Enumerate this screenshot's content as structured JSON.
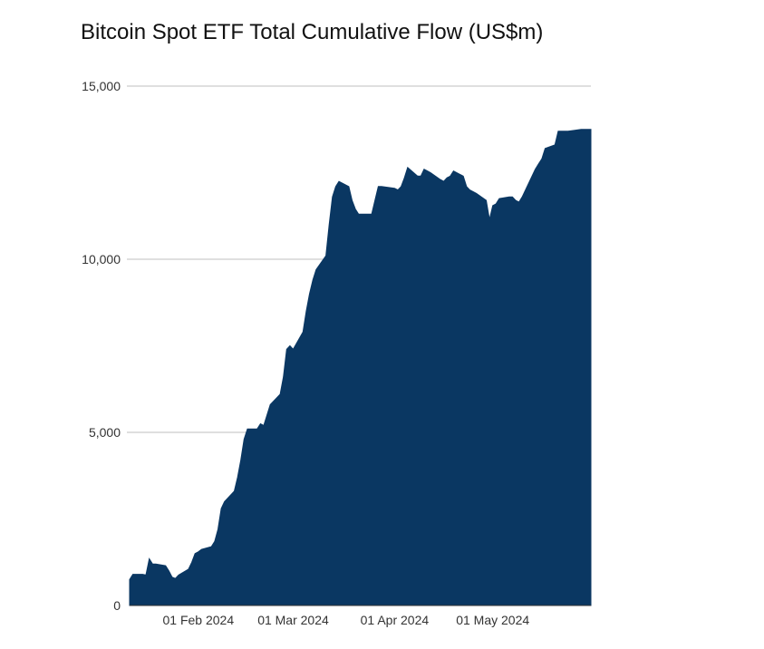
{
  "chart_data": {
    "type": "area",
    "title": "Bitcoin Spot ETF Total Cumulative Flow (US$m)",
    "xlabel": "",
    "ylabel": "",
    "ylim": [
      0,
      15000
    ],
    "yticks": [
      0,
      5000,
      10000,
      15000
    ],
    "ytick_labels": [
      "0",
      "5,000",
      "10,000",
      "15,000"
    ],
    "xlim": [
      "2024-01-11",
      "2024-05-31"
    ],
    "xticks": [
      "2024-02-01",
      "2024-03-01",
      "2024-04-01",
      "2024-05-01"
    ],
    "xtick_labels": [
      "01 Feb 2024",
      "01 Mar 2024",
      "01 Apr 2024",
      "01 May 2024"
    ],
    "grid": true,
    "legend": "none",
    "colors": {
      "fill": "#0a3762",
      "grid": "#cccccc",
      "axis": "#333333"
    },
    "series": [
      {
        "x": [
          "2024-01-11",
          "2024-01-12",
          "2024-01-15",
          "2024-01-16",
          "2024-01-17",
          "2024-01-18",
          "2024-01-19",
          "2024-01-22",
          "2024-01-23",
          "2024-01-24",
          "2024-01-25",
          "2024-01-26",
          "2024-01-29",
          "2024-01-30",
          "2024-01-31",
          "2024-02-01",
          "2024-02-02",
          "2024-02-05",
          "2024-02-06",
          "2024-02-07",
          "2024-02-08",
          "2024-02-09",
          "2024-02-12",
          "2024-02-13",
          "2024-02-14",
          "2024-02-15",
          "2024-02-16",
          "2024-02-19",
          "2024-02-20",
          "2024-02-21",
          "2024-02-22",
          "2024-02-23",
          "2024-02-26",
          "2024-02-27",
          "2024-02-28",
          "2024-02-29",
          "2024-03-01",
          "2024-03-04",
          "2024-03-05",
          "2024-03-06",
          "2024-03-07",
          "2024-03-08",
          "2024-03-11",
          "2024-03-12",
          "2024-03-13",
          "2024-03-14",
          "2024-03-15",
          "2024-03-18",
          "2024-03-19",
          "2024-03-20",
          "2024-03-21",
          "2024-03-22",
          "2024-03-25",
          "2024-03-26",
          "2024-03-27",
          "2024-03-28",
          "2024-04-01",
          "2024-04-02",
          "2024-04-03",
          "2024-04-04",
          "2024-04-05",
          "2024-04-08",
          "2024-04-09",
          "2024-04-10",
          "2024-04-11",
          "2024-04-12",
          "2024-04-15",
          "2024-04-16",
          "2024-04-17",
          "2024-04-18",
          "2024-04-19",
          "2024-04-22",
          "2024-04-23",
          "2024-04-24",
          "2024-04-25",
          "2024-04-26",
          "2024-04-29",
          "2024-04-30",
          "2024-05-01",
          "2024-05-02",
          "2024-05-03",
          "2024-05-06",
          "2024-05-07",
          "2024-05-08",
          "2024-05-09",
          "2024-05-10",
          "2024-05-13",
          "2024-05-14",
          "2024-05-15",
          "2024-05-16",
          "2024-05-17",
          "2024-05-20",
          "2024-05-21",
          "2024-05-22",
          "2024-05-23",
          "2024-05-24",
          "2024-05-28",
          "2024-05-29",
          "2024-05-30",
          "2024-05-31"
        ],
        "values": [
          750,
          900,
          900,
          880,
          1350,
          1200,
          1200,
          1150,
          1000,
          820,
          780,
          880,
          1050,
          1250,
          1500,
          1550,
          1620,
          1700,
          1850,
          2200,
          2800,
          3000,
          3300,
          3700,
          4200,
          4800,
          5100,
          5100,
          5250,
          5200,
          5500,
          5800,
          6100,
          6600,
          7400,
          7500,
          7400,
          7900,
          8500,
          9000,
          9400,
          9700,
          10100,
          11000,
          11800,
          12100,
          12250,
          12100,
          11700,
          11450,
          11300,
          11300,
          11300,
          11700,
          12100,
          12100,
          12050,
          12000,
          12100,
          12350,
          12650,
          12400,
          12400,
          12600,
          12550,
          12500,
          12300,
          12250,
          12350,
          12400,
          12550,
          12400,
          12100,
          12000,
          11950,
          11900,
          11700,
          11150,
          11550,
          11600,
          11750,
          11800,
          11800,
          11700,
          11650,
          11800,
          12400,
          12600,
          12750,
          12900,
          13200,
          13300,
          13700,
          13700,
          13700,
          13700,
          13750,
          13750,
          13750,
          13750
        ]
      }
    ]
  }
}
